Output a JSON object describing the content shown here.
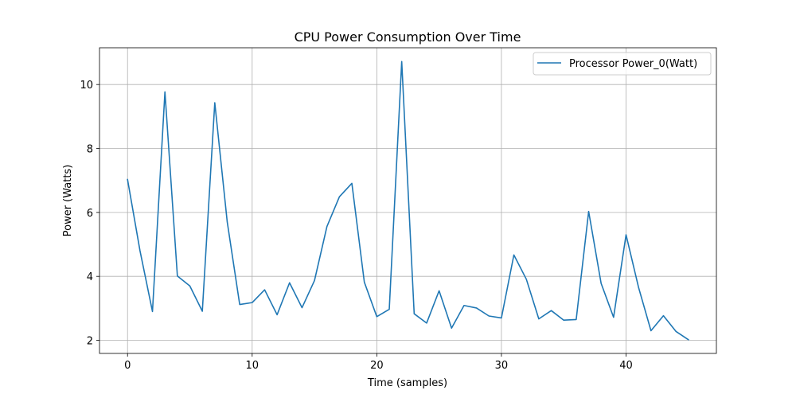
{
  "chart_data": {
    "type": "line",
    "title": "CPU Power Consumption Over Time",
    "xlabel": "Time (samples)",
    "ylabel": "Power (Watts)",
    "xlim": [
      -2.25,
      47.25
    ],
    "ylim": [
      1.59,
      11.15
    ],
    "xticks": [
      0,
      10,
      20,
      30,
      40
    ],
    "yticks": [
      2,
      4,
      6,
      8,
      10
    ],
    "grid": true,
    "legend_position": "top-right",
    "series": [
      {
        "name": "Processor Power_0(Watt)",
        "color": "#1f77b4",
        "x": [
          0,
          1,
          2,
          3,
          4,
          5,
          6,
          7,
          8,
          9,
          10,
          11,
          12,
          13,
          14,
          15,
          16,
          17,
          18,
          19,
          20,
          21,
          22,
          23,
          24,
          25,
          26,
          27,
          28,
          29,
          30,
          31,
          32,
          33,
          34,
          35,
          36,
          37,
          38,
          39,
          40,
          41,
          42,
          43,
          44,
          45
        ],
        "values": [
          7.03,
          4.8,
          2.9,
          9.77,
          4.01,
          3.7,
          2.91,
          9.43,
          5.7,
          3.12,
          3.18,
          3.58,
          2.8,
          3.8,
          3.02,
          3.87,
          5.56,
          6.49,
          6.91,
          3.82,
          2.74,
          2.97,
          10.72,
          2.83,
          2.54,
          3.55,
          2.38,
          3.09,
          3.01,
          2.76,
          2.7,
          4.67,
          3.91,
          2.67,
          2.93,
          2.63,
          2.65,
          6.03,
          3.78,
          2.72,
          5.3,
          3.66,
          2.3,
          2.77,
          2.28,
          2.02
        ]
      }
    ]
  }
}
